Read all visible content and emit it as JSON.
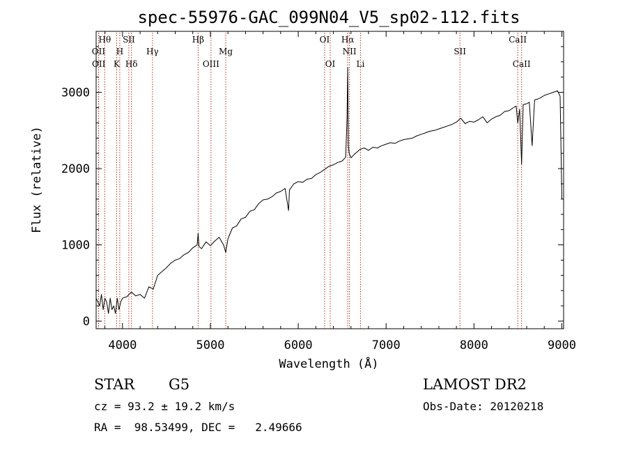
{
  "chart_data": {
    "type": "line",
    "title": "spec-55976-GAC_099N04_V5_sp02-112.fits",
    "xlabel": "Wavelength (Å)",
    "ylabel": "Flux (relative)",
    "xlim": [
      3700,
      9020
    ],
    "ylim": [
      -100,
      3800
    ],
    "xticks": [
      4000,
      5000,
      6000,
      7000,
      8000,
      9000
    ],
    "xtick_labels": [
      "4000",
      "5000",
      "6000",
      "7000",
      "8000",
      "9000"
    ],
    "yticks": [
      0,
      1000,
      2000,
      3000
    ],
    "ytick_labels": [
      "0",
      "1000",
      "2000",
      "3000"
    ],
    "grid": false,
    "series": [
      {
        "x": [
          3700,
          3720,
          3740,
          3760,
          3780,
          3800,
          3820,
          3840,
          3860,
          3880,
          3900,
          3920,
          3940,
          3960,
          3980,
          4000,
          4050,
          4100,
          4150,
          4200,
          4250,
          4300,
          4350,
          4400,
          4450,
          4500,
          4550,
          4600,
          4650,
          4700,
          4750,
          4800,
          4850,
          4861,
          4870,
          4900,
          4950,
          5000,
          5050,
          5100,
          5150,
          5175,
          5200,
          5250,
          5300,
          5350,
          5400,
          5450,
          5500,
          5550,
          5600,
          5650,
          5700,
          5750,
          5800,
          5850,
          5890,
          5900,
          5950,
          6000,
          6050,
          6100,
          6150,
          6200,
          6250,
          6300,
          6350,
          6400,
          6450,
          6500,
          6540,
          6555,
          6563,
          6570,
          6580,
          6600,
          6650,
          6700,
          6750,
          6800,
          6850,
          6900,
          6950,
          7000,
          7050,
          7100,
          7150,
          7200,
          7250,
          7300,
          7350,
          7400,
          7450,
          7500,
          7550,
          7600,
          7650,
          7700,
          7750,
          7800,
          7850,
          7900,
          7950,
          8000,
          8050,
          8100,
          8150,
          8200,
          8250,
          8300,
          8350,
          8400,
          8450,
          8480,
          8498,
          8520,
          8542,
          8560,
          8600,
          8630,
          8662,
          8690,
          8720,
          8760,
          8800,
          8850,
          8900,
          8950,
          8980,
          9000
        ],
        "y": [
          300,
          250,
          200,
          350,
          150,
          300,
          250,
          100,
          300,
          150,
          200,
          100,
          300,
          150,
          250,
          300,
          320,
          380,
          330,
          350,
          300,
          450,
          420,
          600,
          650,
          700,
          760,
          800,
          820,
          870,
          900,
          960,
          1000,
          1150,
          980,
          950,
          1040,
          990,
          1050,
          1100,
          1000,
          900,
          1080,
          1220,
          1250,
          1340,
          1360,
          1440,
          1460,
          1540,
          1590,
          1600,
          1630,
          1680,
          1700,
          1740,
          1450,
          1720,
          1800,
          1830,
          1820,
          1860,
          1870,
          1920,
          1950,
          1990,
          2030,
          2050,
          2080,
          2100,
          2150,
          2650,
          3330,
          2300,
          2200,
          2140,
          2200,
          2250,
          2270,
          2240,
          2280,
          2270,
          2300,
          2320,
          2340,
          2330,
          2360,
          2380,
          2390,
          2400,
          2430,
          2450,
          2470,
          2490,
          2500,
          2520,
          2540,
          2560,
          2580,
          2610,
          2660,
          2590,
          2620,
          2610,
          2640,
          2680,
          2600,
          2650,
          2680,
          2700,
          2750,
          2760,
          2800,
          2820,
          2600,
          2780,
          2060,
          2840,
          2850,
          2870,
          2300,
          2900,
          2910,
          2930,
          2960,
          2980,
          3000,
          3020,
          2950,
          1600
        ]
      }
    ],
    "line_markers": [
      {
        "label": "Hθ",
        "x": 3798,
        "row": 1
      },
      {
        "label": "OII",
        "x": 3727,
        "row": 2
      },
      {
        "label": "OII",
        "x": 3729,
        "row": 3
      },
      {
        "label": "H",
        "x": 3969,
        "row": 2
      },
      {
        "label": "K",
        "x": 3934,
        "row": 3
      },
      {
        "label": "SII",
        "x": 4072,
        "row": 1
      },
      {
        "label": "Hδ",
        "x": 4102,
        "row": 3
      },
      {
        "label": "Hγ",
        "x": 4341,
        "row": 2
      },
      {
        "label": "Hβ",
        "x": 4861,
        "row": 1
      },
      {
        "label": "OIII",
        "x": 5007,
        "row": 3
      },
      {
        "label": "Mg",
        "x": 5175,
        "row": 2
      },
      {
        "label": "OI",
        "x": 6300,
        "row": 1
      },
      {
        "label": "OI",
        "x": 6364,
        "row": 3
      },
      {
        "label": "Hα",
        "x": 6563,
        "row": 1
      },
      {
        "label": "NII",
        "x": 6583,
        "row": 2
      },
      {
        "label": "Li",
        "x": 6708,
        "row": 3
      },
      {
        "label": "SII",
        "x": 7840,
        "row": 2
      },
      {
        "label": "CaII",
        "x": 8498,
        "row": 1
      },
      {
        "label": "CaII",
        "x": 8542,
        "row": 3
      }
    ]
  },
  "info": {
    "class": "STAR",
    "subclass": "G5",
    "survey": "LAMOST DR2",
    "cz": "cz = 93.2 ± 19.2 km/s",
    "obs_date": "Obs-Date: 20120218",
    "radec": "RA =  98.53499, DEC =   2.49666"
  }
}
